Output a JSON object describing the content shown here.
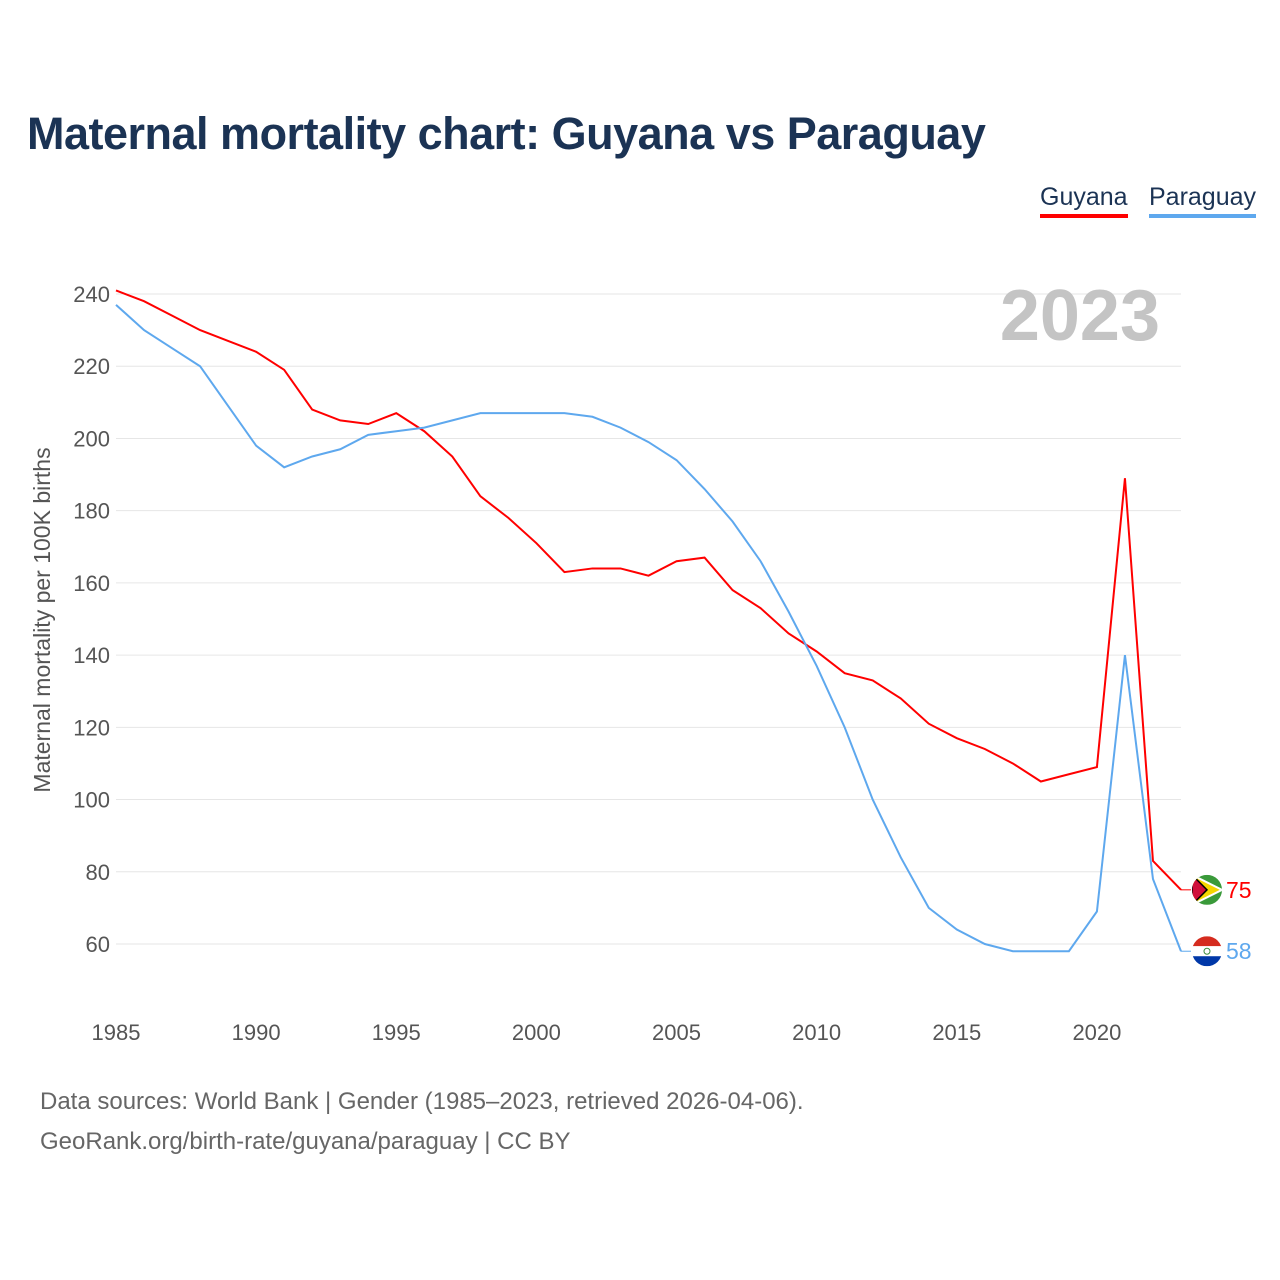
{
  "chart_data": {
    "type": "line",
    "title": "Maternal mortality chart: Guyana vs Paraguay",
    "ylabel": "Maternal mortality per 100K births",
    "xlabel": "",
    "year_label": "2023",
    "xlim": [
      1985,
      2023
    ],
    "ylim": [
      60,
      240
    ],
    "xticks": [
      1985,
      1990,
      1995,
      2000,
      2005,
      2010,
      2015,
      2020
    ],
    "yticks": [
      60,
      80,
      100,
      120,
      140,
      160,
      180,
      200,
      220,
      240
    ],
    "grid": true,
    "legend_position": "top-right",
    "x": [
      1985,
      1986,
      1987,
      1988,
      1989,
      1990,
      1991,
      1992,
      1993,
      1994,
      1995,
      1996,
      1997,
      1998,
      1999,
      2000,
      2001,
      2002,
      2003,
      2004,
      2005,
      2006,
      2007,
      2008,
      2009,
      2010,
      2011,
      2012,
      2013,
      2014,
      2015,
      2016,
      2017,
      2018,
      2019,
      2020,
      2021,
      2022,
      2023
    ],
    "series": [
      {
        "name": "Guyana",
        "color": "#ff0000",
        "end_label": "75",
        "values": [
          241,
          238,
          234,
          230,
          227,
          224,
          219,
          208,
          205,
          204,
          207,
          202,
          195,
          184,
          178,
          171,
          163,
          164,
          164,
          162,
          166,
          167,
          158,
          153,
          146,
          141,
          135,
          133,
          128,
          121,
          117,
          114,
          110,
          105,
          107,
          109,
          189,
          83,
          75
        ]
      },
      {
        "name": "Paraguay",
        "color": "#5ea8ee",
        "end_label": "58",
        "values": [
          237,
          230,
          225,
          220,
          209,
          198,
          192,
          195,
          197,
          201,
          202,
          203,
          205,
          207,
          207,
          207,
          207,
          206,
          203,
          199,
          194,
          186,
          177,
          166,
          152,
          137,
          120,
          100,
          84,
          70,
          64,
          60,
          58,
          58,
          58,
          69,
          140,
          78,
          58
        ]
      }
    ]
  },
  "footer": {
    "line1": "Data sources: World Bank | Gender (1985–2023, retrieved 2026-04-06).",
    "line2": "GeoRank.org/birth-rate/guyana/paraguay | CC BY"
  }
}
